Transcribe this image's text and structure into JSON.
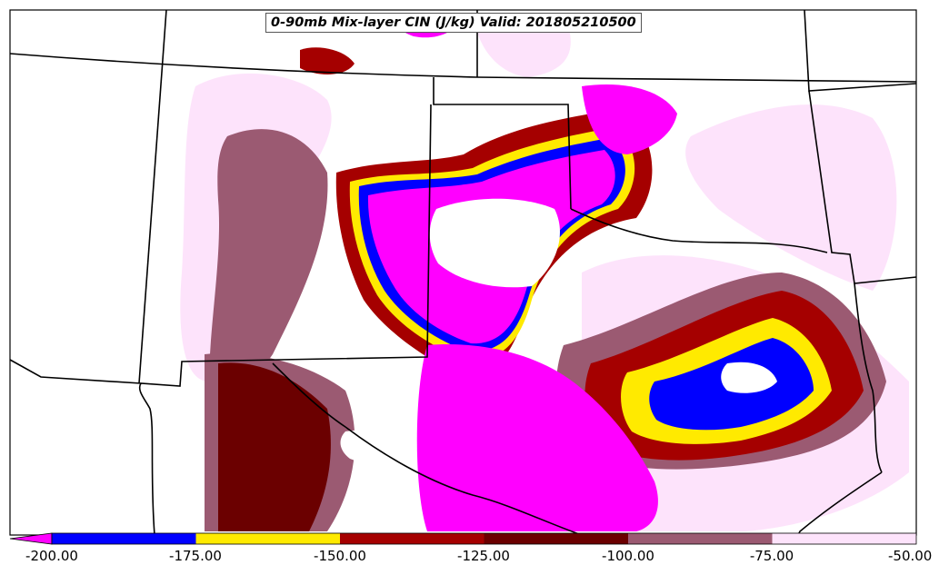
{
  "map": {
    "title": "0-90mb Mix-layer CIN (J/kg) Valid: 201805210500"
  },
  "colorbar": {
    "ticks": [
      "-200.00",
      "-175.00",
      "-150.00",
      "-125.00",
      "-100.00",
      "-75.00",
      "-50.00"
    ],
    "bins": [
      {
        "min": -200,
        "max": -175,
        "color": "#0000ff"
      },
      {
        "min": -175,
        "max": -150,
        "color": "#ffea00"
      },
      {
        "min": -150,
        "max": -125,
        "color": "#a50000"
      },
      {
        "min": -125,
        "max": -100,
        "color": "#6b0000"
      },
      {
        "min": -100,
        "max": -75,
        "color": "#9b5a72"
      },
      {
        "min": -75,
        "max": -50,
        "color": "#fde3fb"
      }
    ],
    "extend_color": "#ff00ff"
  },
  "colors": {
    "magenta": "#ff00ff",
    "blue": "#0000ff",
    "yellow": "#ffea00",
    "red": "#a50000",
    "darkred": "#6b0000",
    "mauve": "#9b5a72",
    "pink": "#fde3fb"
  }
}
